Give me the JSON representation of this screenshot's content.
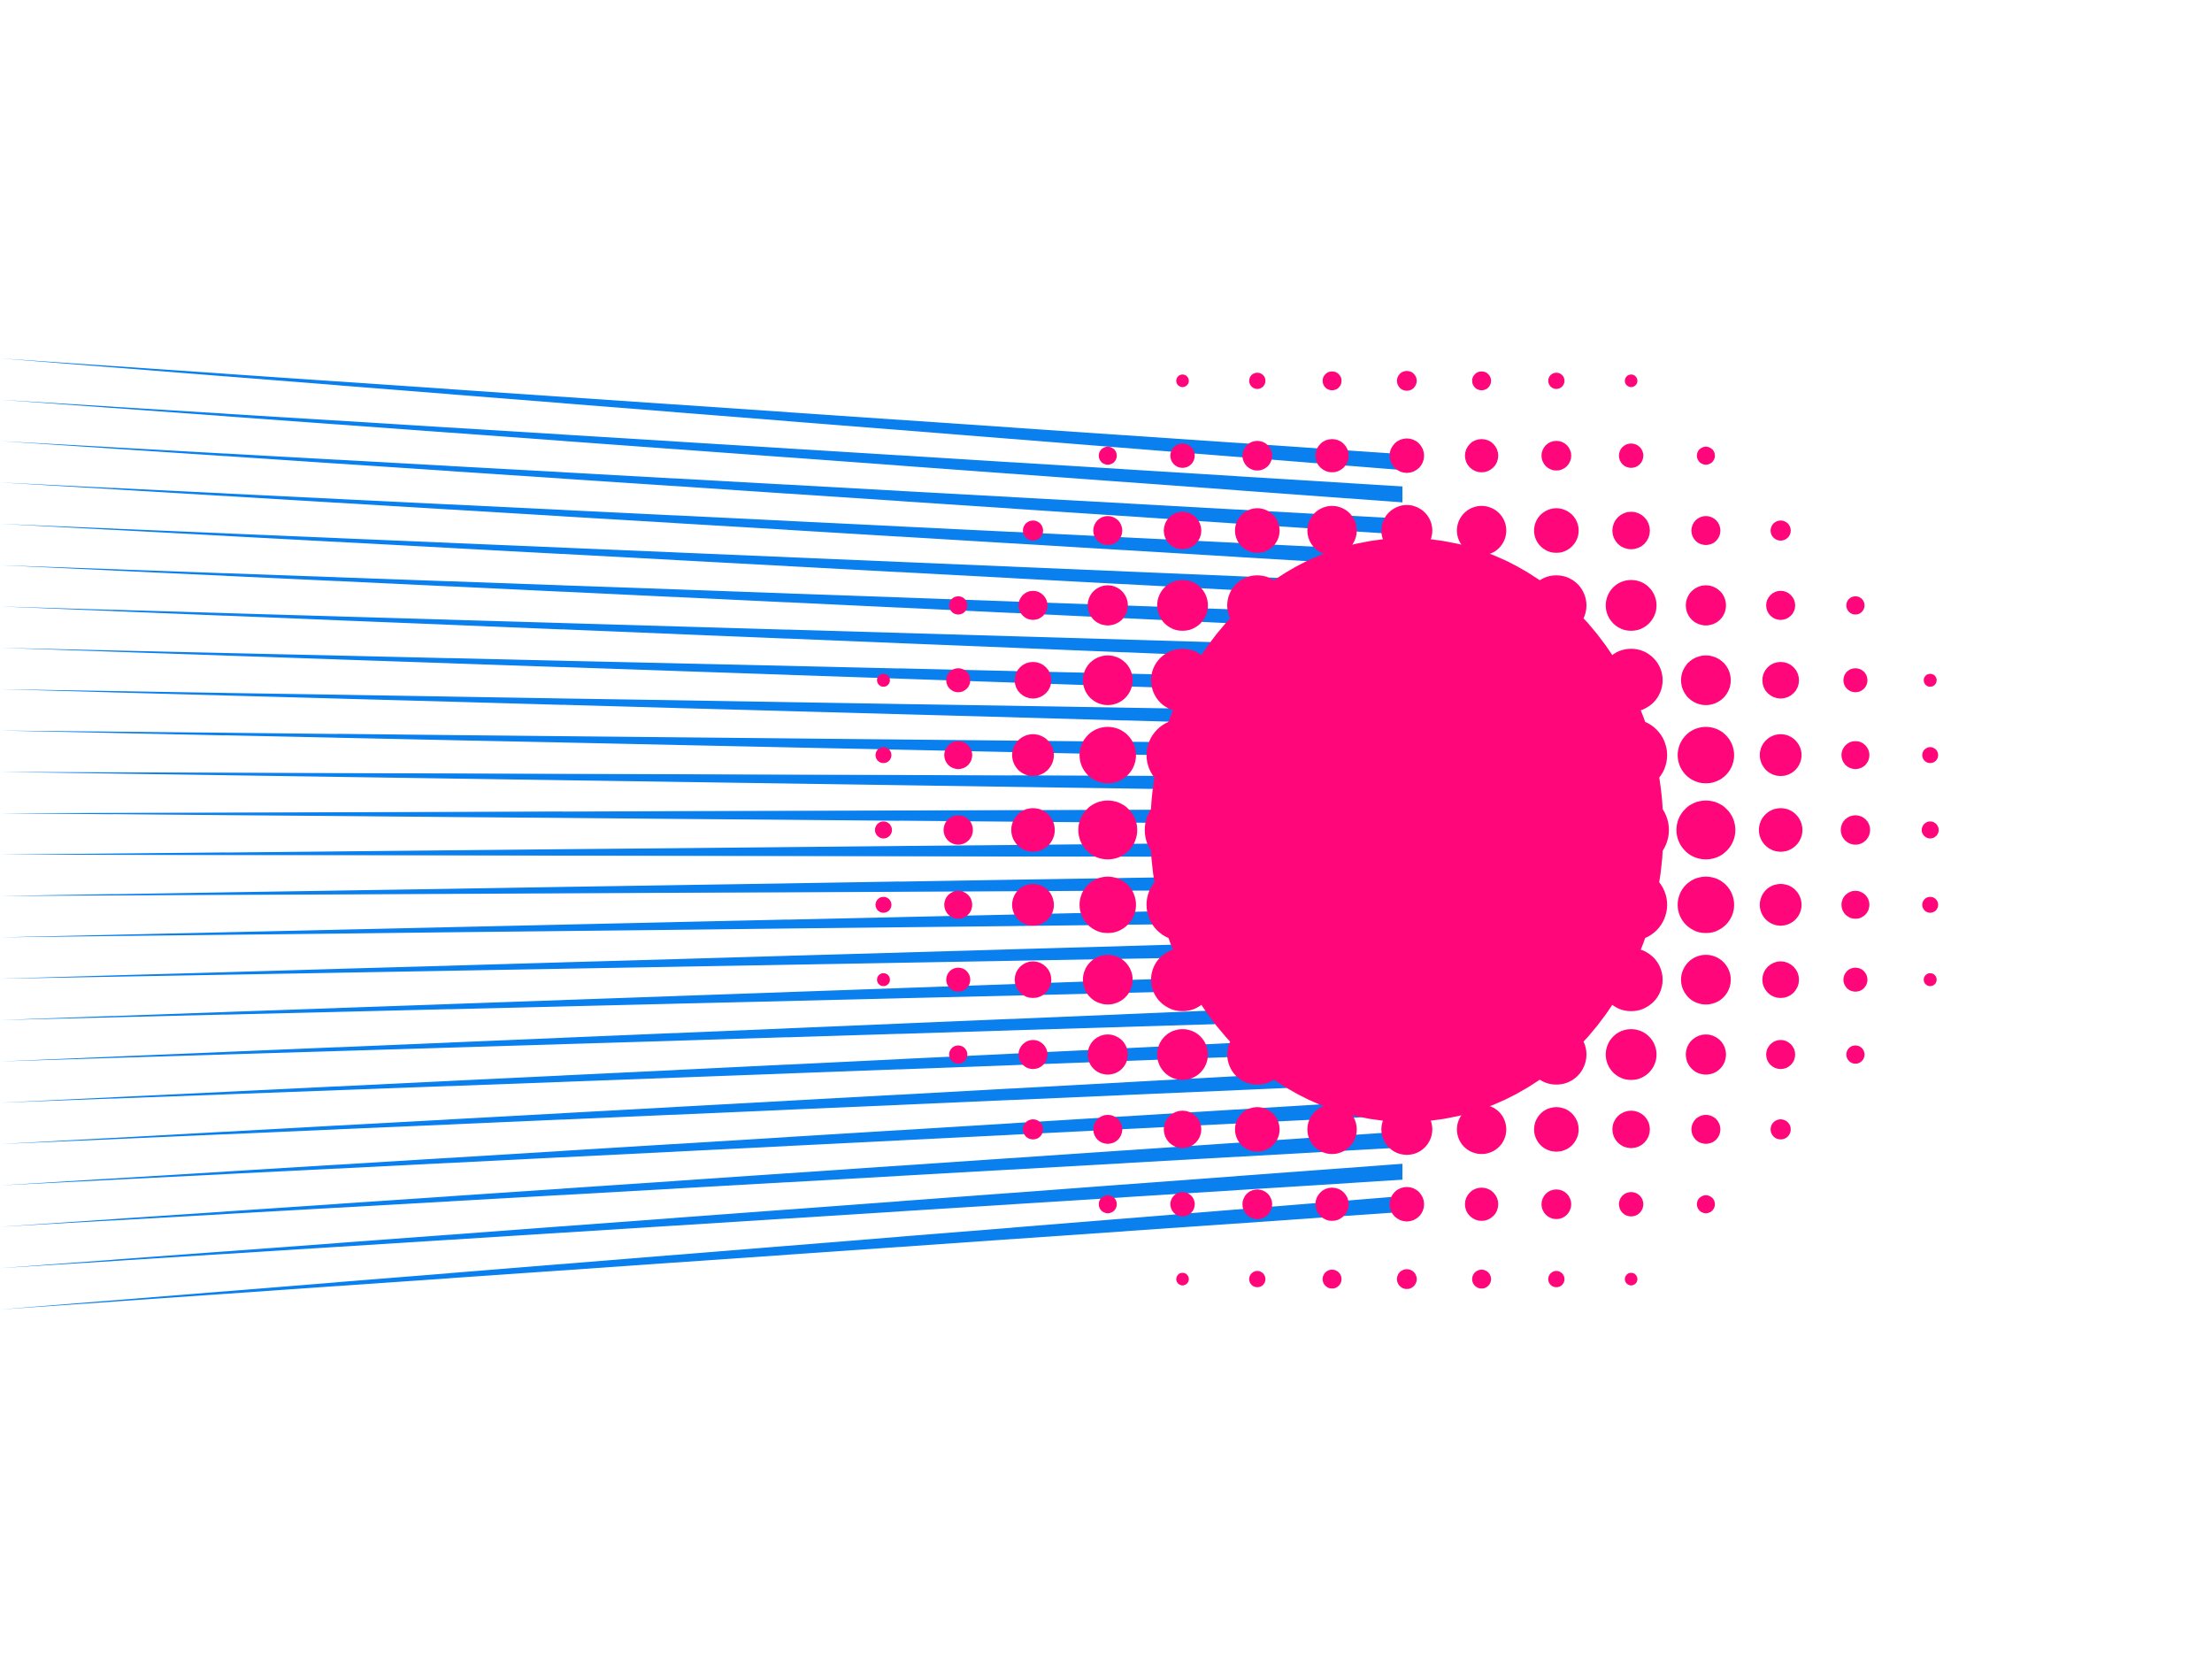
{
  "artwork": {
    "type": "halftone-burst-illustration",
    "background_color": "#ffffff",
    "colors": {
      "dots": "#ff067a",
      "speed_lines": "#0a80ee"
    },
    "elements": [
      "speed-lines",
      "halftone-dots"
    ]
  }
}
